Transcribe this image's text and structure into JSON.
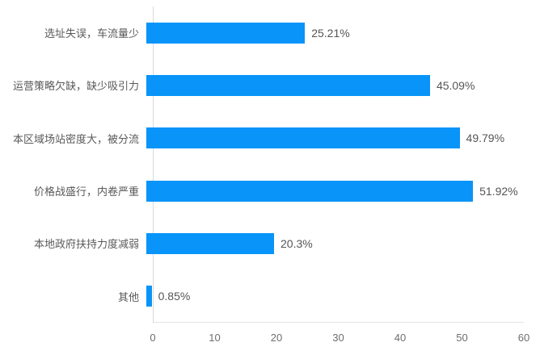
{
  "chart_data": {
    "type": "bar",
    "orientation": "horizontal",
    "title": "",
    "xlabel": "",
    "ylabel": "",
    "categories": [
      "选址失误，车流量少",
      "运营策略欠缺，缺少吸引力",
      "本区域场站密度大，被分流",
      "价格战盛行，内卷严重",
      "本地政府扶持力度减弱",
      "其他"
    ],
    "values": [
      25.21,
      45.09,
      49.79,
      51.92,
      20.3,
      0.85
    ],
    "data_labels": [
      "25.21%",
      "45.09%",
      "49.79%",
      "51.92%",
      "20.3%",
      "0.85%"
    ],
    "xlim": [
      0,
      60
    ],
    "x_ticks": [
      "0",
      "10",
      "20",
      "30",
      "40",
      "50",
      "60"
    ],
    "grid": false,
    "legend": "none"
  },
  "colors": {
    "bar": "#0894f8",
    "axis_line": "#d9d9d9",
    "category_text": "#595959",
    "value_text": "#555555",
    "tick_text": "#6e6e6e",
    "background": "#ffffff"
  }
}
